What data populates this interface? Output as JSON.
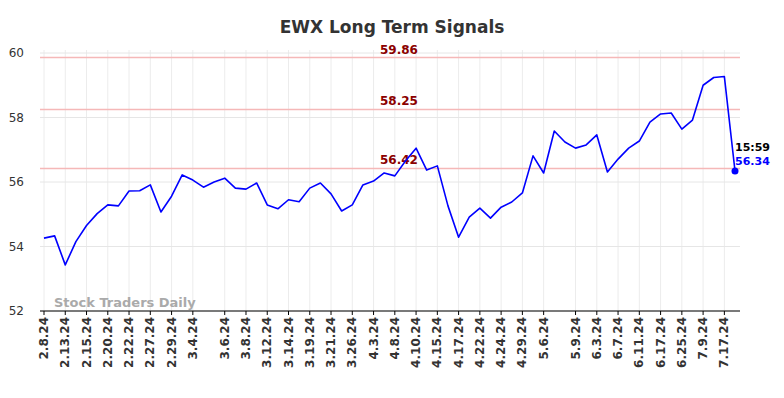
{
  "chart_data": {
    "type": "line",
    "title": "EWX Long Term Signals",
    "categories": [
      "2.8.24",
      null,
      "2.13.24",
      null,
      "2.15.24",
      null,
      "2.20.24",
      null,
      "2.22.24",
      null,
      "2.27.24",
      null,
      "2.29.24",
      null,
      "3.4.24",
      null,
      null,
      "3.6.24",
      null,
      "3.8.24",
      null,
      "3.12.24",
      null,
      "3.14.24",
      null,
      "3.19.24",
      null,
      "3.21.24",
      null,
      "3.26.24",
      null,
      "4.3.24",
      null,
      "4.8.24",
      null,
      "4.10.24",
      null,
      "4.15.24",
      null,
      "4.17.24",
      null,
      "4.22.24",
      null,
      "4.24.24",
      null,
      "4.29.24",
      null,
      "5.6.24",
      null,
      null,
      "5.9.24",
      null,
      "6.3.24",
      null,
      "6.7.24",
      null,
      "6.11.24",
      null,
      "6.17.24",
      null,
      "6.25.24",
      null,
      "7.9.24",
      null,
      "7.17.24",
      null
    ],
    "values": [
      54.26,
      54.33,
      53.43,
      54.15,
      54.65,
      55.02,
      55.29,
      55.26,
      55.72,
      55.73,
      55.91,
      55.07,
      55.56,
      56.22,
      56.06,
      55.84,
      56.0,
      56.12,
      55.81,
      55.78,
      55.97,
      55.29,
      55.17,
      55.45,
      55.39,
      55.81,
      55.97,
      55.63,
      55.1,
      55.29,
      55.91,
      56.03,
      56.28,
      56.19,
      56.65,
      57.05,
      56.37,
      56.5,
      55.26,
      54.29,
      54.91,
      55.19,
      54.88,
      55.22,
      55.38,
      55.66,
      56.81,
      56.28,
      57.58,
      57.24,
      57.05,
      57.15,
      57.46,
      56.31,
      56.71,
      57.05,
      57.27,
      57.86,
      58.11,
      58.14,
      57.64,
      57.92,
      59.0,
      59.24,
      59.27,
      56.34
    ],
    "color": "#0000ff",
    "ylim": [
      52,
      60
    ],
    "yticks": [
      52,
      54,
      56,
      58,
      60
    ],
    "grid": true,
    "hlines": [
      59.86,
      58.25,
      56.42
    ],
    "annotations": [
      {
        "text": "15:59"
      }
    ],
    "watermark": "Stock Traders Daily"
  }
}
